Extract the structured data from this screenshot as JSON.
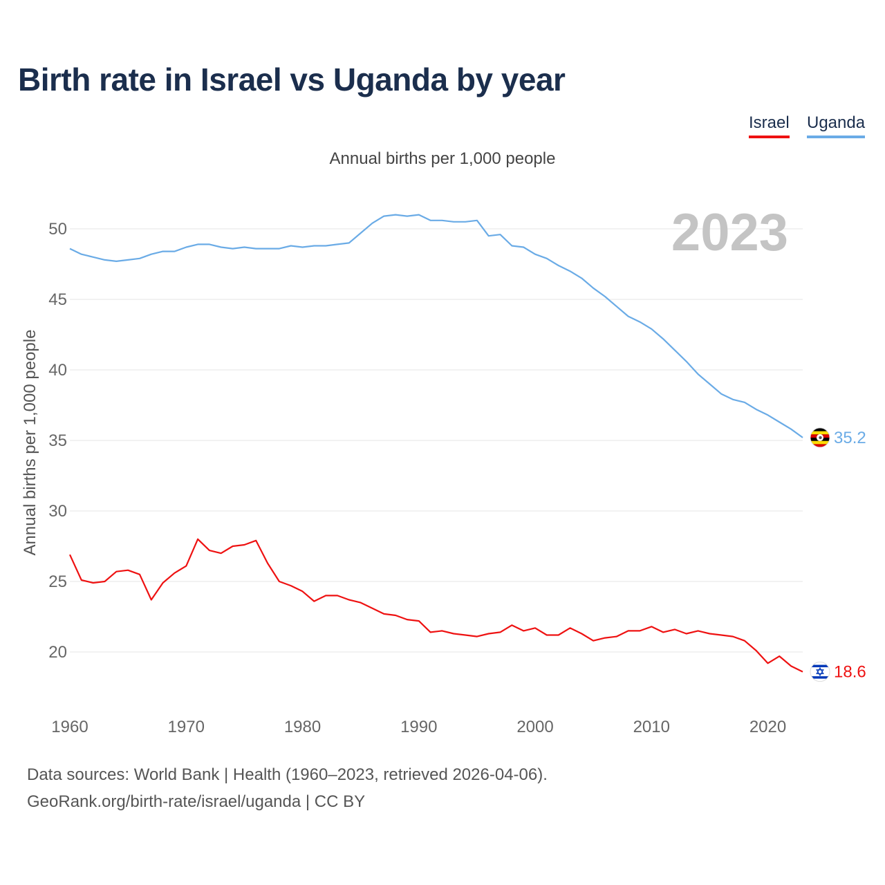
{
  "title": "Birth rate in Israel vs Uganda by year",
  "subtitle": "Annual births per 1,000 people",
  "legend": [
    {
      "label": "Israel",
      "color": "#ee1111"
    },
    {
      "label": "Uganda",
      "color": "#6aabe6"
    }
  ],
  "footer": {
    "line1": "Data sources: World Bank | Health (1960–2023, retrieved 2026-04-06).",
    "line2": "GeoRank.org/birth-rate/israel/uganda | CC BY"
  },
  "chart_data": {
    "type": "line",
    "title": "Birth rate in Israel vs Uganda by year",
    "ylabel": "Annual births per 1,000 people",
    "xlabel": "",
    "year_label": "2023",
    "xlim": [
      1960,
      2023
    ],
    "ylim": [
      15.5,
      53
    ],
    "x_ticks": [
      1960,
      1970,
      1980,
      1990,
      2000,
      2010,
      2020
    ],
    "y_ticks": [
      20,
      25,
      30,
      35,
      40,
      45,
      50
    ],
    "x": [
      1960,
      1961,
      1962,
      1963,
      1964,
      1965,
      1966,
      1967,
      1968,
      1969,
      1970,
      1971,
      1972,
      1973,
      1974,
      1975,
      1976,
      1977,
      1978,
      1979,
      1980,
      1981,
      1982,
      1983,
      1984,
      1985,
      1986,
      1987,
      1988,
      1989,
      1990,
      1991,
      1992,
      1993,
      1994,
      1995,
      1996,
      1997,
      1998,
      1999,
      2000,
      2001,
      2002,
      2003,
      2004,
      2005,
      2006,
      2007,
      2008,
      2009,
      2010,
      2011,
      2012,
      2013,
      2014,
      2015,
      2016,
      2017,
      2018,
      2019,
      2020,
      2021,
      2022,
      2023
    ],
    "series": [
      {
        "name": "Uganda",
        "color": "#6aabe6",
        "end_label": "35.2",
        "values": [
          48.6,
          48.2,
          48.0,
          47.8,
          47.7,
          47.8,
          47.9,
          48.2,
          48.4,
          48.4,
          48.7,
          48.9,
          48.9,
          48.7,
          48.6,
          48.7,
          48.6,
          48.6,
          48.6,
          48.8,
          48.7,
          48.8,
          48.8,
          48.9,
          49.0,
          49.7,
          50.4,
          50.9,
          51.0,
          50.9,
          51.0,
          50.6,
          50.6,
          50.5,
          50.5,
          50.6,
          49.5,
          49.6,
          48.8,
          48.7,
          48.2,
          47.9,
          47.4,
          47.0,
          46.5,
          45.8,
          45.2,
          44.5,
          43.8,
          43.4,
          42.9,
          42.2,
          41.4,
          40.6,
          39.7,
          39.0,
          38.3,
          37.9,
          37.7,
          37.2,
          36.8,
          36.3,
          35.8,
          35.2
        ]
      },
      {
        "name": "Israel",
        "color": "#ee1111",
        "end_label": "18.6",
        "values": [
          26.9,
          25.1,
          24.9,
          25.0,
          25.7,
          25.8,
          25.5,
          23.7,
          24.9,
          25.6,
          26.1,
          28.0,
          27.2,
          27.0,
          27.5,
          27.6,
          27.9,
          26.3,
          25.0,
          24.7,
          24.3,
          23.6,
          24.0,
          24.0,
          23.7,
          23.5,
          23.1,
          22.7,
          22.6,
          22.3,
          22.2,
          21.4,
          21.5,
          21.3,
          21.2,
          21.1,
          21.3,
          21.4,
          21.9,
          21.5,
          21.7,
          21.2,
          21.2,
          21.7,
          21.3,
          20.8,
          21.0,
          21.1,
          21.5,
          21.5,
          21.8,
          21.4,
          21.6,
          21.3,
          21.5,
          21.3,
          21.2,
          21.1,
          20.8,
          20.1,
          19.2,
          19.7,
          19.0,
          18.6
        ]
      }
    ]
  }
}
